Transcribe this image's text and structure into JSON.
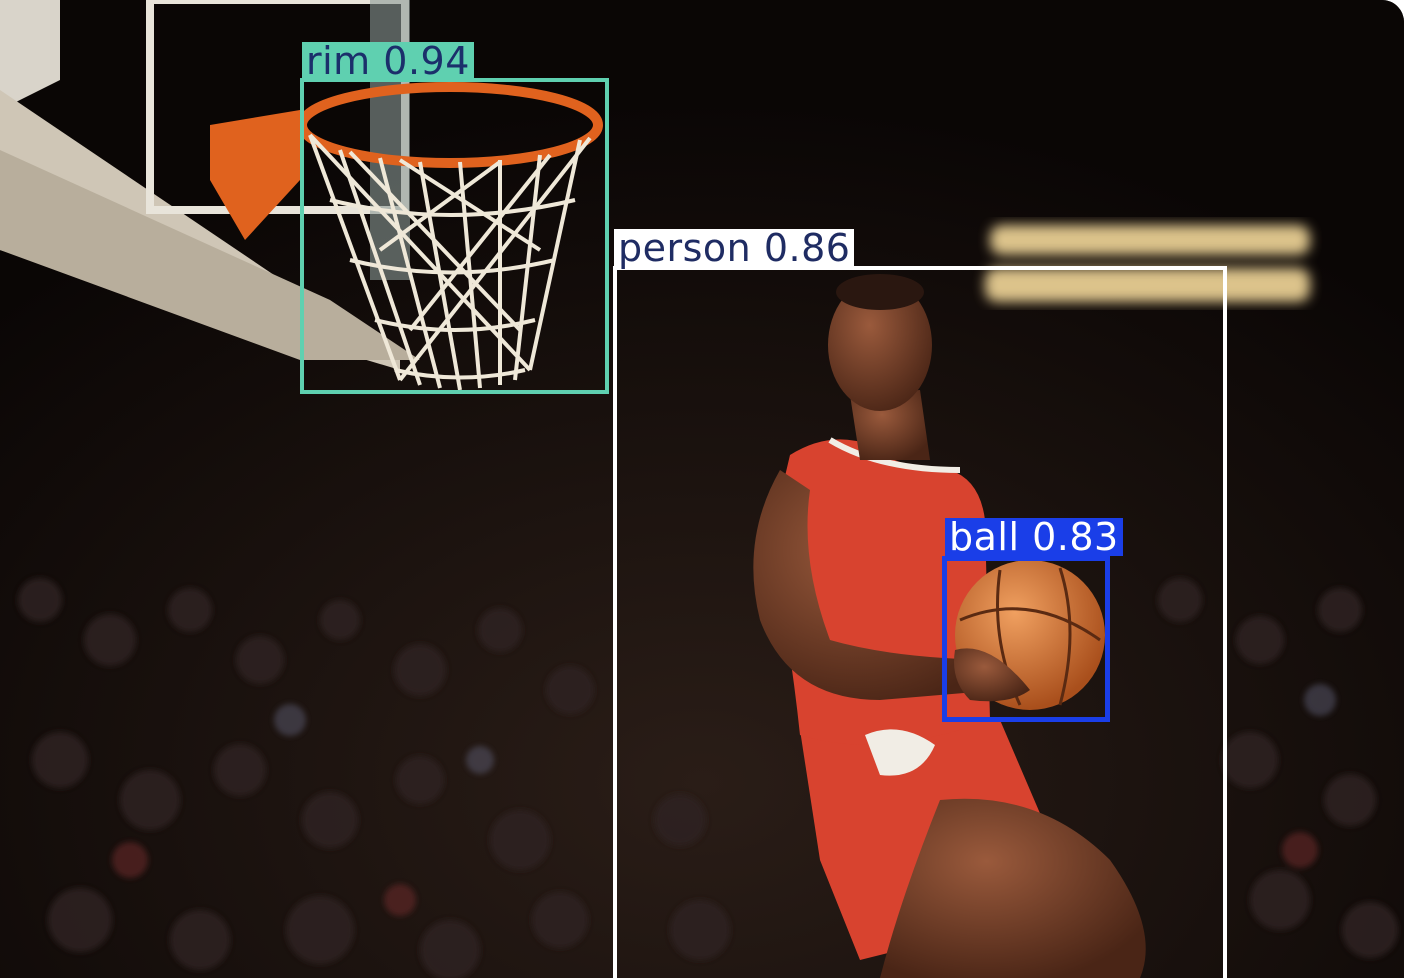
{
  "detections": [
    {
      "class": "rim",
      "confidence": "0.94",
      "label": "rim  0.94",
      "color": "#5fd0b0",
      "text_color": "#1b2f6b"
    },
    {
      "class": "person",
      "confidence": "0.86",
      "label": "person  0.86",
      "color": "#ffffff",
      "text_color": "#1f2c63"
    },
    {
      "class": "ball",
      "confidence": "0.83",
      "label": "ball  0.83",
      "color": "#1a3ee8",
      "text_color": "#ffffff"
    }
  ],
  "colors": {
    "background": "#0c0806",
    "jersey": "#d8432f",
    "rim": "#e0621e",
    "ball": "#d9782e"
  }
}
